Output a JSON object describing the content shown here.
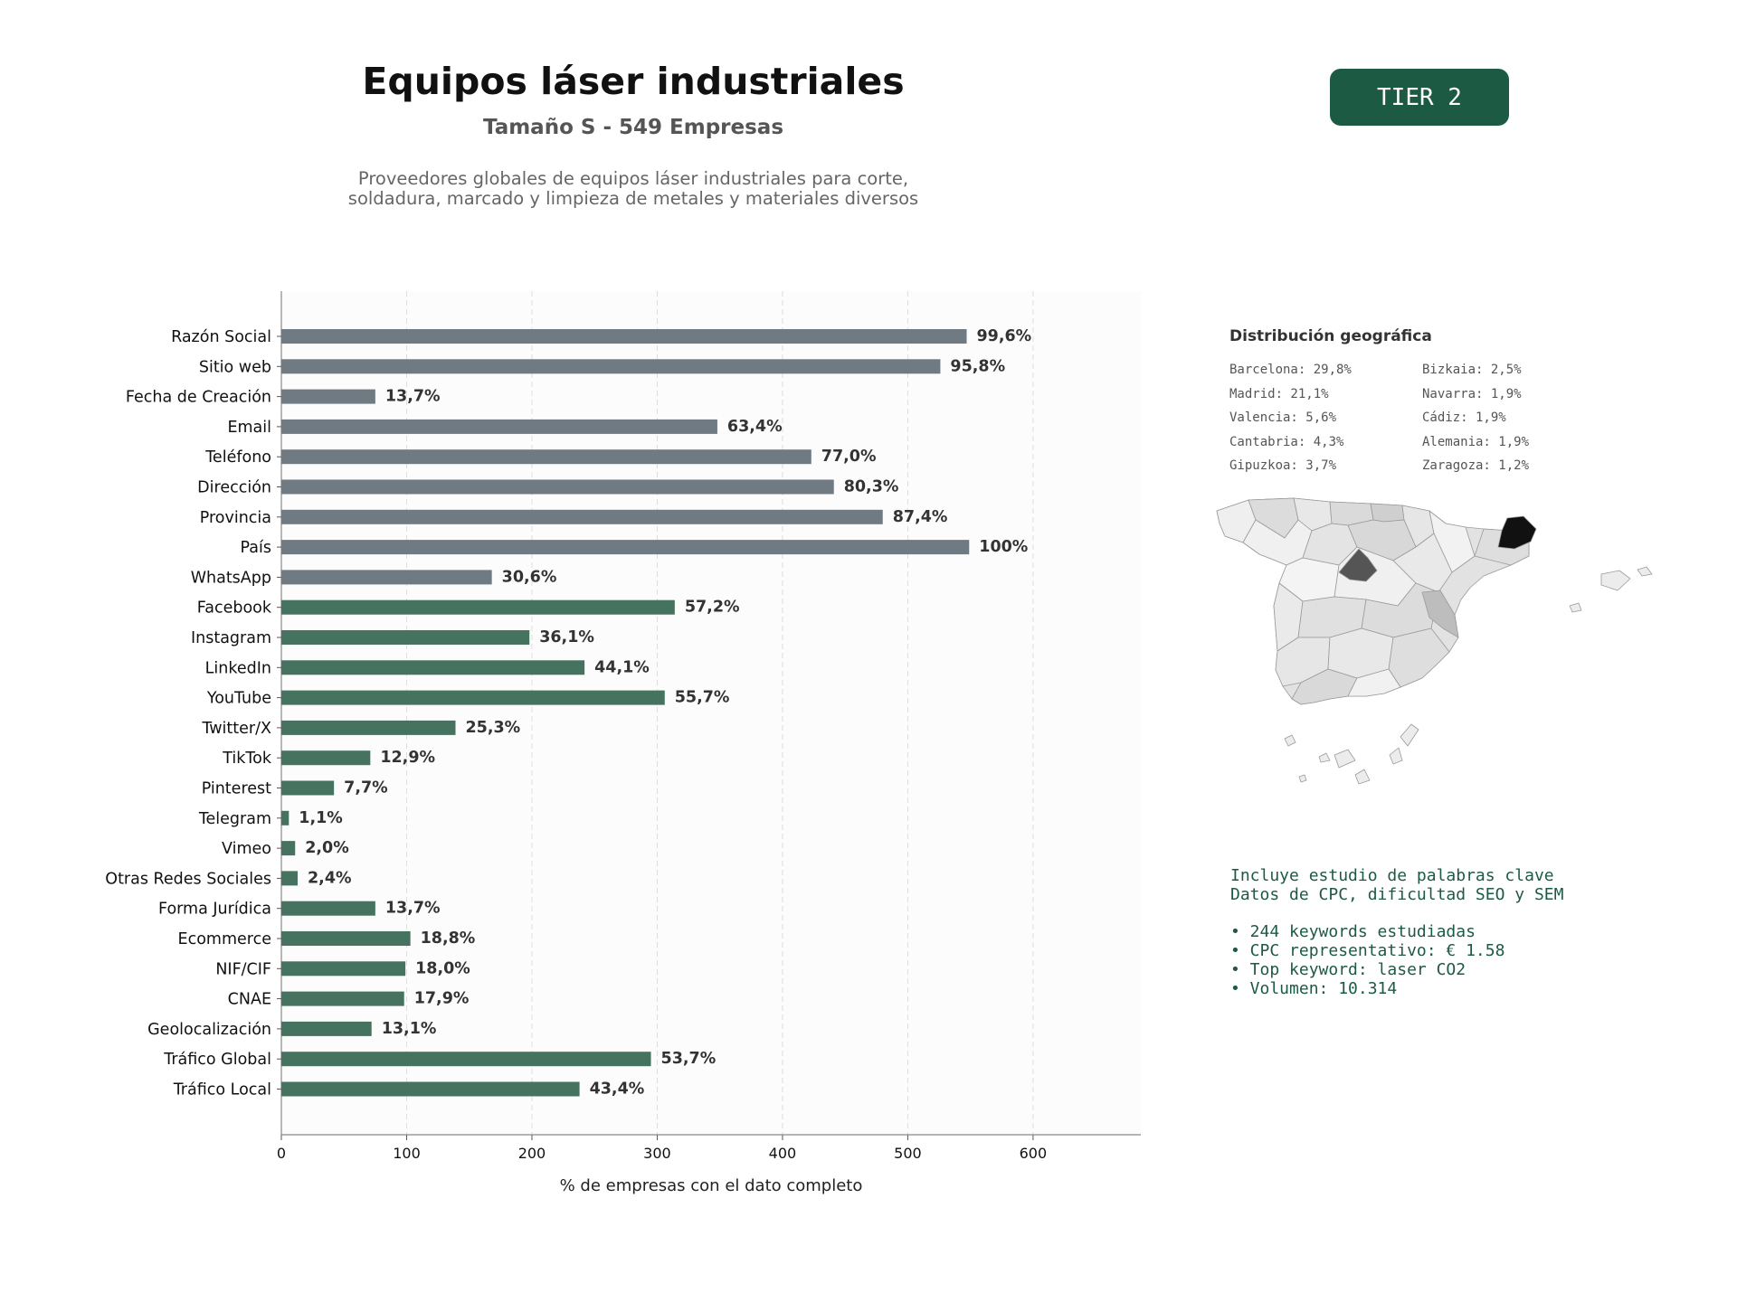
{
  "header": {
    "title": "Equipos láser industriales",
    "subtitle": "Tamaño S - 549 Empresas",
    "description": "Proveedores globales de equipos láser industriales para corte,\nsoldadura, marcado y limpieza de metales y materiales diversos",
    "tier_label": "TIER 2"
  },
  "chart_data": {
    "type": "bar",
    "orientation": "horizontal",
    "xlabel": "% de empresas con el dato completo",
    "xlim": [
      0,
      686
    ],
    "xticks": [
      0,
      100,
      200,
      300,
      400,
      500,
      600
    ],
    "grid": "vertical dashed",
    "categories": [
      "Razón Social",
      "Sitio web",
      "Fecha de Creación",
      "Email",
      "Teléfono",
      "Dirección",
      "Provincia",
      "País",
      "WhatsApp",
      "Facebook",
      "Instagram",
      "LinkedIn",
      "YouTube",
      "Twitter/X",
      "TikTok",
      "Pinterest",
      "Telegram",
      "Vimeo",
      "Otras Redes Sociales",
      "Forma Jurídica",
      "Ecommerce",
      "NIF/CIF",
      "CNAE",
      "Geolocalización",
      "Tráfico Global",
      "Tráfico Local"
    ],
    "values": [
      547,
      526,
      75,
      348,
      423,
      441,
      480,
      549,
      168,
      314,
      198,
      242,
      306,
      139,
      71,
      42,
      6,
      11,
      13,
      75,
      103,
      99,
      98,
      72,
      295,
      238
    ],
    "labels": [
      "99,6%",
      "95,8%",
      "13,7%",
      "63,4%",
      "77,0%",
      "80,3%",
      "87,4%",
      "100%",
      "30,6%",
      "57,2%",
      "36,1%",
      "44,1%",
      "55,7%",
      "25,3%",
      "12,9%",
      "7,7%",
      "1,1%",
      "2,0%",
      "2,4%",
      "13,7%",
      "18,8%",
      "18,0%",
      "17,9%",
      "13,1%",
      "53,7%",
      "43,4%"
    ],
    "colors": {
      "contact": "#6f7a83",
      "digital": "#457360"
    },
    "contact_count": 9
  },
  "geo": {
    "title": "Distribución geográfica",
    "left": [
      "Barcelona: 29,8%",
      "Madrid: 21,1%",
      "Valencia: 5,6%",
      "Cantabria: 4,3%",
      "Gipuzkoa: 3,7%"
    ],
    "right": [
      "Bizkaia: 2,5%",
      "Navarra: 1,9%",
      "Cádiz: 1,9%",
      "Alemania: 1,9%",
      "Zaragoza: 1,2%"
    ]
  },
  "keywords": {
    "line1": "Incluye estudio de palabras clave",
    "line2": "Datos de CPC, dificultad SEO y SEM",
    "bullets": [
      "• 244 keywords estudiadas",
      "• CPC representativo: € 1.58",
      "• Top keyword: laser CO2",
      "• Volumen: 10.314"
    ]
  }
}
